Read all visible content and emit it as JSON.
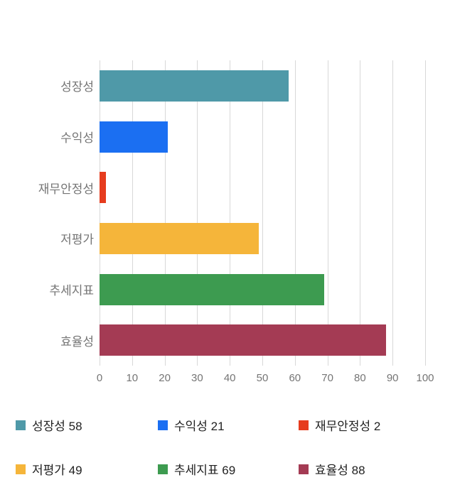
{
  "chart_data": {
    "type": "bar",
    "orientation": "horizontal",
    "title": "",
    "categories": [
      "성장성",
      "수익성",
      "재무안정성",
      "저평가",
      "추세지표",
      "효율성"
    ],
    "values": [
      58,
      21,
      2,
      49,
      69,
      88
    ],
    "colors": [
      "#4f99a8",
      "#1b6ff2",
      "#e63c1e",
      "#f5b53a",
      "#3d9b50",
      "#a43b54"
    ],
    "xlim": [
      0,
      100
    ],
    "xticks": [
      0,
      10,
      20,
      30,
      40,
      50,
      60,
      70,
      80,
      90,
      100
    ],
    "grid": true,
    "legend_position": "bottom",
    "legend": [
      {
        "label": "성장성 58",
        "color": "#4f99a8"
      },
      {
        "label": "수익성 21",
        "color": "#1b6ff2"
      },
      {
        "label": "재무안정성 2",
        "color": "#e63c1e"
      },
      {
        "label": "저평가 49",
        "color": "#f5b53a"
      },
      {
        "label": "추세지표 69",
        "color": "#3d9b50"
      },
      {
        "label": "효율성 88",
        "color": "#a43b54"
      }
    ],
    "text_colors": {
      "axis_labels": "#757575",
      "legend_labels": "#222222"
    }
  }
}
